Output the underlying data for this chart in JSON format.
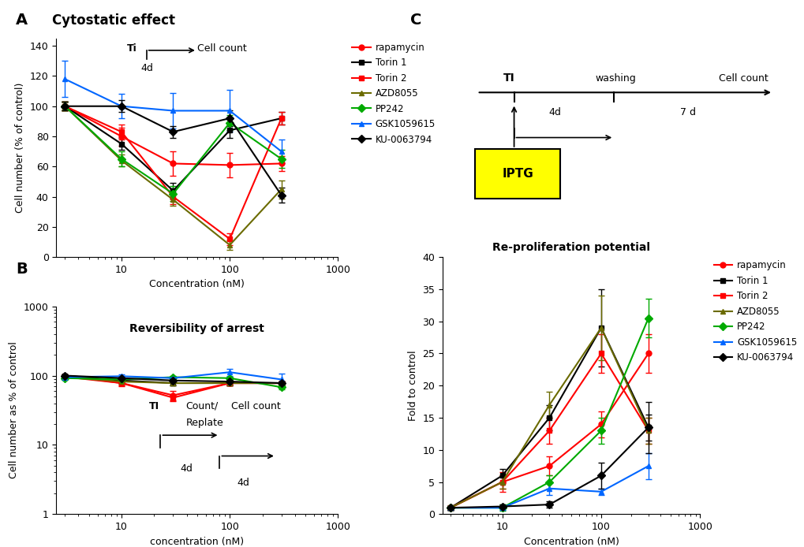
{
  "panel_A": {
    "xlabel": "Concentration (nM)",
    "ylabel": "Cell number (% of control)",
    "ylim": [
      0,
      145
    ],
    "yticks": [
      0,
      20,
      40,
      60,
      80,
      100,
      120,
      140
    ],
    "series": {
      "rapamycin": {
        "x": [
          3,
          10,
          30,
          100,
          300
        ],
        "y": [
          100,
          80,
          62,
          61,
          62
        ],
        "yerr": [
          3,
          6,
          8,
          8,
          5
        ],
        "color": "#ff0000",
        "marker": "o"
      },
      "Torin 1": {
        "x": [
          3,
          10,
          30,
          100,
          300
        ],
        "y": [
          100,
          75,
          44,
          84,
          92
        ],
        "yerr": [
          3,
          4,
          5,
          5,
          4
        ],
        "color": "#000000",
        "marker": "s"
      },
      "Torin 2": {
        "x": [
          3,
          10,
          30,
          100,
          300
        ],
        "y": [
          100,
          83,
          40,
          12,
          92
        ],
        "yerr": [
          3,
          5,
          5,
          4,
          4
        ],
        "color": "#ff0000",
        "marker": "s"
      },
      "AZD8055": {
        "x": [
          3,
          10,
          30,
          100,
          300
        ],
        "y": [
          100,
          64,
          38,
          8,
          45
        ],
        "yerr": [
          3,
          4,
          4,
          3,
          6
        ],
        "color": "#6b6b00",
        "marker": "^"
      },
      "PP242": {
        "x": [
          3,
          10,
          30,
          100,
          300
        ],
        "y": [
          100,
          65,
          42,
          89,
          65
        ],
        "yerr": [
          3,
          5,
          5,
          5,
          6
        ],
        "color": "#00aa00",
        "marker": "D"
      },
      "GSK1059615": {
        "x": [
          3,
          10,
          30,
          100,
          300
        ],
        "y": [
          118,
          100,
          97,
          97,
          70
        ],
        "yerr": [
          12,
          8,
          12,
          14,
          8
        ],
        "color": "#0066ff",
        "marker": "^"
      },
      "KU-0063794": {
        "x": [
          3,
          10,
          30,
          100,
          300
        ],
        "y": [
          100,
          100,
          83,
          92,
          41
        ],
        "yerr": [
          3,
          4,
          4,
          5,
          5
        ],
        "color": "#000000",
        "marker": "D"
      }
    }
  },
  "panel_B": {
    "xlabel": "concentration (nM)",
    "ylabel": "Cell number as % of control",
    "series": {
      "rapamycin": {
        "x": [
          3,
          10,
          30,
          100,
          300
        ],
        "y": [
          100,
          78,
          52,
          78,
          78
        ],
        "yerr": [
          5,
          8,
          8,
          5,
          5
        ],
        "color": "#ff0000",
        "marker": "o"
      },
      "Torin 1": {
        "x": [
          3,
          10,
          30,
          100,
          300
        ],
        "y": [
          100,
          85,
          78,
          78,
          78
        ],
        "yerr": [
          3,
          5,
          5,
          5,
          5
        ],
        "color": "#000000",
        "marker": "s"
      },
      "Torin 2": {
        "x": [
          3,
          10,
          30,
          100,
          300
        ],
        "y": [
          96,
          78,
          48,
          78,
          78
        ],
        "yerr": [
          5,
          5,
          5,
          5,
          5
        ],
        "color": "#ff0000",
        "marker": "s"
      },
      "AZD8055": {
        "x": [
          3,
          10,
          30,
          100,
          300
        ],
        "y": [
          95,
          82,
          78,
          78,
          78
        ],
        "yerr": [
          5,
          5,
          5,
          5,
          5
        ],
        "color": "#6b6b00",
        "marker": "^"
      },
      "PP242": {
        "x": [
          3,
          10,
          30,
          100,
          300
        ],
        "y": [
          92,
          88,
          95,
          92,
          68
        ],
        "yerr": [
          5,
          5,
          5,
          5,
          5
        ],
        "color": "#00aa00",
        "marker": "D"
      },
      "GSK1059615": {
        "x": [
          3,
          10,
          30,
          100,
          300
        ],
        "y": [
          95,
          98,
          92,
          112,
          88
        ],
        "yerr": [
          5,
          5,
          5,
          12,
          18
        ],
        "color": "#0066ff",
        "marker": "^"
      },
      "KU-0063794": {
        "x": [
          3,
          10,
          30,
          100,
          300
        ],
        "y": [
          100,
          92,
          85,
          82,
          78
        ],
        "yerr": [
          3,
          4,
          4,
          4,
          4
        ],
        "color": "#000000",
        "marker": "D"
      }
    }
  },
  "panel_C": {
    "title": "Re-proliferation potential",
    "xlabel": "Concentration (nM)",
    "ylabel": "Fold to control",
    "ylim": [
      0,
      40
    ],
    "yticks": [
      0,
      5,
      10,
      15,
      20,
      25,
      30,
      35,
      40
    ],
    "series": {
      "rapamycin": {
        "x": [
          3,
          10,
          30,
          100,
          300
        ],
        "y": [
          1,
          5,
          7.5,
          14,
          25
        ],
        "yerr": [
          0.3,
          1.5,
          1.5,
          2,
          3
        ],
        "color": "#ff0000",
        "marker": "o"
      },
      "Torin 1": {
        "x": [
          3,
          10,
          30,
          100,
          300
        ],
        "y": [
          1,
          6,
          15,
          29,
          13.5
        ],
        "yerr": [
          0.3,
          1,
          2,
          6,
          2
        ],
        "color": "#000000",
        "marker": "s"
      },
      "Torin 2": {
        "x": [
          3,
          10,
          30,
          100,
          300
        ],
        "y": [
          1,
          5,
          13,
          25,
          13
        ],
        "yerr": [
          0.3,
          1,
          2,
          3,
          2
        ],
        "color": "#ff0000",
        "marker": "s"
      },
      "AZD8055": {
        "x": [
          3,
          10,
          30,
          100,
          300
        ],
        "y": [
          1,
          5,
          17,
          29,
          13
        ],
        "yerr": [
          0.3,
          1,
          2,
          5,
          2
        ],
        "color": "#6b6b00",
        "marker": "^"
      },
      "PP242": {
        "x": [
          3,
          10,
          30,
          100,
          300
        ],
        "y": [
          1,
          1,
          5,
          13,
          30.5
        ],
        "yerr": [
          0.3,
          0.5,
          1,
          2,
          3
        ],
        "color": "#00aa00",
        "marker": "D"
      },
      "GSK1059615": {
        "x": [
          3,
          10,
          30,
          100,
          300
        ],
        "y": [
          1,
          1,
          4,
          3.5,
          7.5
        ],
        "yerr": [
          0.3,
          0.3,
          1,
          0.5,
          2
        ],
        "color": "#0066ff",
        "marker": "^"
      },
      "KU-0063794": {
        "x": [
          3,
          10,
          30,
          100,
          300
        ],
        "y": [
          1,
          1.2,
          1.5,
          6,
          13.5
        ],
        "yerr": [
          0.3,
          0.3,
          0.5,
          2,
          4
        ],
        "color": "#000000",
        "marker": "D"
      }
    }
  },
  "legend_order": [
    "rapamycin",
    "Torin 1",
    "Torin 2",
    "AZD8055",
    "PP242",
    "GSK1059615",
    "KU-0063794"
  ],
  "background_color": "#ffffff"
}
